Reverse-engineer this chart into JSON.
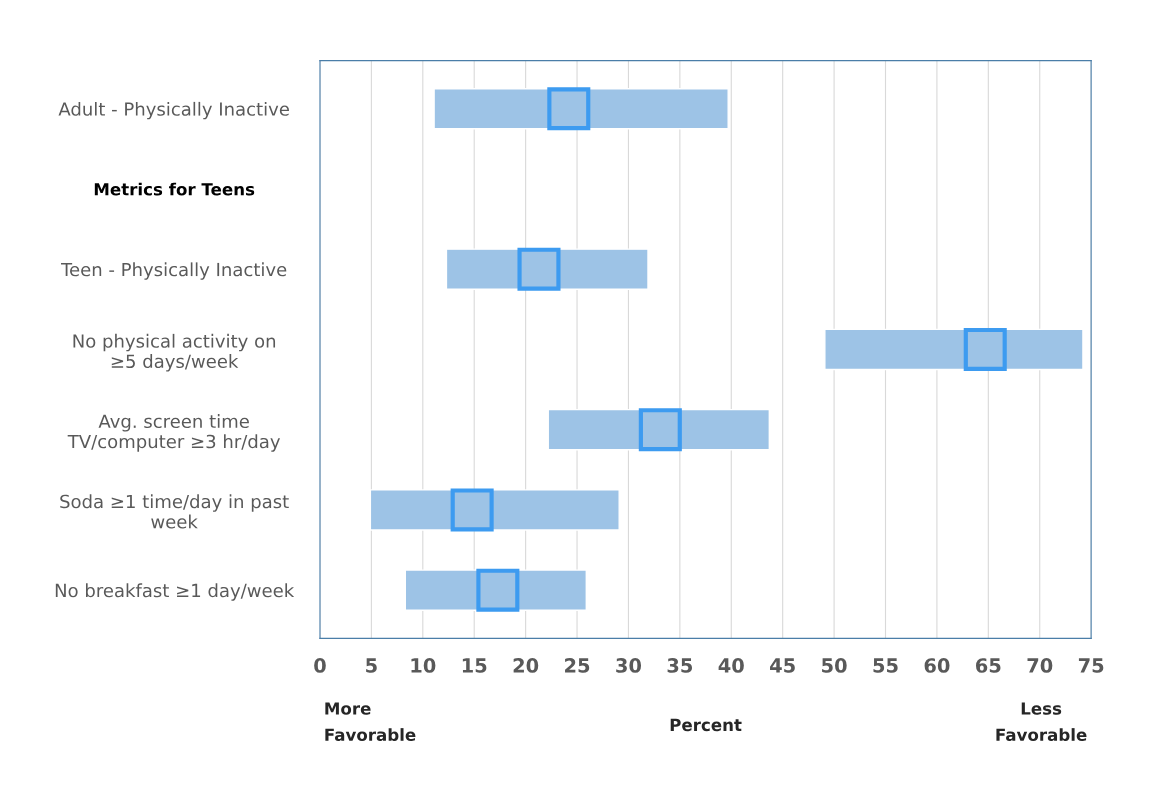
{
  "chart_data": {
    "type": "bar",
    "orientation": "horizontal",
    "xlabel": "Percent",
    "categories": [
      "Adult - Physically Inactive",
      "Metrics for Teens",
      "Teen - Physically Inactive",
      "No physical activity on\n≥5 days/week",
      "Avg. screen time\nTV/computer ≥3 hr/day",
      "Soda ≥1 time/day in past\nweek",
      "No breakfast ≥1 day/week"
    ],
    "series": [
      {
        "color": "#9dc3e6",
        "base": [
          11.1,
          null,
          12.3,
          49.1,
          22.2,
          4.9,
          8.3
        ],
        "values": [
          28.6,
          null,
          19.6,
          25.1,
          21.5,
          24.2,
          17.6
        ]
      },
      {
        "type": "scatter",
        "marker": "square",
        "color": "#3d9bf0",
        "values": [
          24.2,
          null,
          21.3,
          64.7,
          33.1,
          14.8,
          17.3
        ]
      }
    ],
    "xlim": [
      0,
      75
    ],
    "xticks": [
      0,
      5,
      10,
      15,
      20,
      25,
      30,
      35,
      40,
      45,
      50,
      55,
      60,
      65,
      70,
      75
    ],
    "grid": "x",
    "annotations": [
      "More\nFavorable",
      "Less\nFavorable"
    ]
  }
}
